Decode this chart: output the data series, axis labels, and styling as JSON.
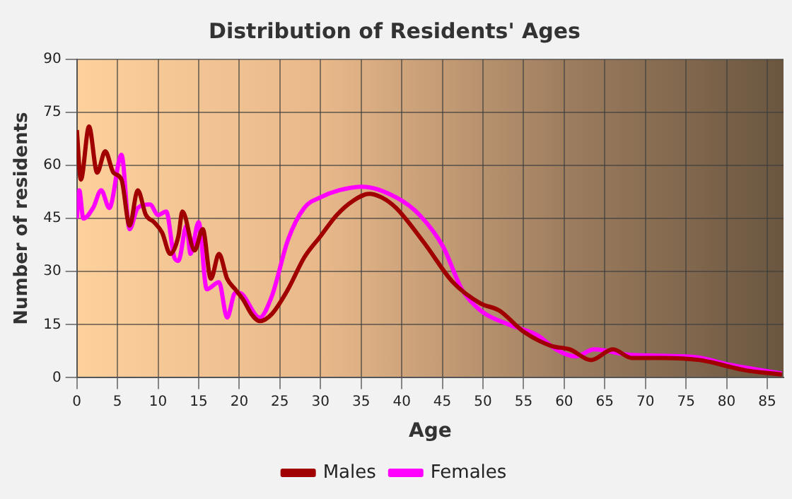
{
  "chart_data": {
    "type": "line",
    "title": "Distribution of Residents' Ages",
    "xlabel": "Age",
    "ylabel": "Number of residents",
    "xlim": [
      0,
      87
    ],
    "xticks": [
      0,
      5,
      10,
      15,
      20,
      25,
      30,
      35,
      40,
      45,
      50,
      55,
      60,
      65,
      70,
      75,
      80,
      85
    ],
    "ylim": [
      0,
      90
    ],
    "yticks": [
      0,
      15,
      30,
      45,
      60,
      75,
      90
    ],
    "grid": true,
    "legend": "bottom",
    "marker": "none",
    "line_style": "solid",
    "series": [
      {
        "name": "Males",
        "color": "#a00000",
        "x": [
          0,
          0.5,
          1.5,
          2.5,
          3.5,
          4.5,
          5.5,
          6.5,
          7.5,
          8.5,
          9.5,
          10.5,
          11.5,
          12.5,
          13,
          14.5,
          15.5,
          16.5,
          17.5,
          18.5,
          19.5,
          20.5,
          21.5,
          22.5,
          24,
          26,
          28,
          30,
          32,
          34,
          36,
          37.5,
          39.3,
          42.8,
          46.3,
          49.7,
          52,
          55,
          58.4,
          60.7,
          63.3,
          66,
          68.3,
          72,
          76.7,
          82.3,
          86.8
        ],
        "values": [
          70,
          56,
          71,
          58,
          64,
          58,
          56,
          43,
          53,
          46,
          44,
          41,
          35,
          40,
          47,
          36,
          42,
          28,
          35,
          28,
          25,
          22,
          18,
          16,
          18,
          25,
          34,
          40,
          46,
          50,
          52,
          51,
          48,
          38,
          27,
          21,
          19,
          13,
          9,
          8,
          5,
          8,
          5.6,
          5.6,
          5,
          2.1,
          0.9
        ]
      },
      {
        "name": "Females",
        "color": "#ff00ff",
        "x": [
          0,
          0.3,
          0.8,
          2,
          3,
          4,
          5.5,
          6.5,
          7.5,
          9,
          10,
          11,
          12,
          12.5,
          13.5,
          14,
          15,
          16,
          17.5,
          18.5,
          19.5,
          20,
          22.5,
          24,
          26,
          28,
          30,
          32.3,
          35.2,
          39.3,
          42.2,
          45.1,
          47.4,
          49.7,
          53.2,
          56.7,
          59,
          61.4,
          63.7,
          67.6,
          72,
          76.3,
          80.3,
          86.8
        ],
        "values": [
          45,
          53,
          45,
          48,
          53,
          48,
          63,
          42,
          48,
          49,
          46,
          47,
          34,
          33,
          43,
          35,
          44,
          25,
          27,
          17,
          24,
          24,
          17,
          23,
          39,
          48,
          51,
          53,
          54,
          51,
          46,
          37,
          25,
          19,
          15,
          12,
          8,
          6,
          8,
          6.6,
          6.2,
          5.8,
          3.7,
          1.2
        ]
      }
    ]
  }
}
